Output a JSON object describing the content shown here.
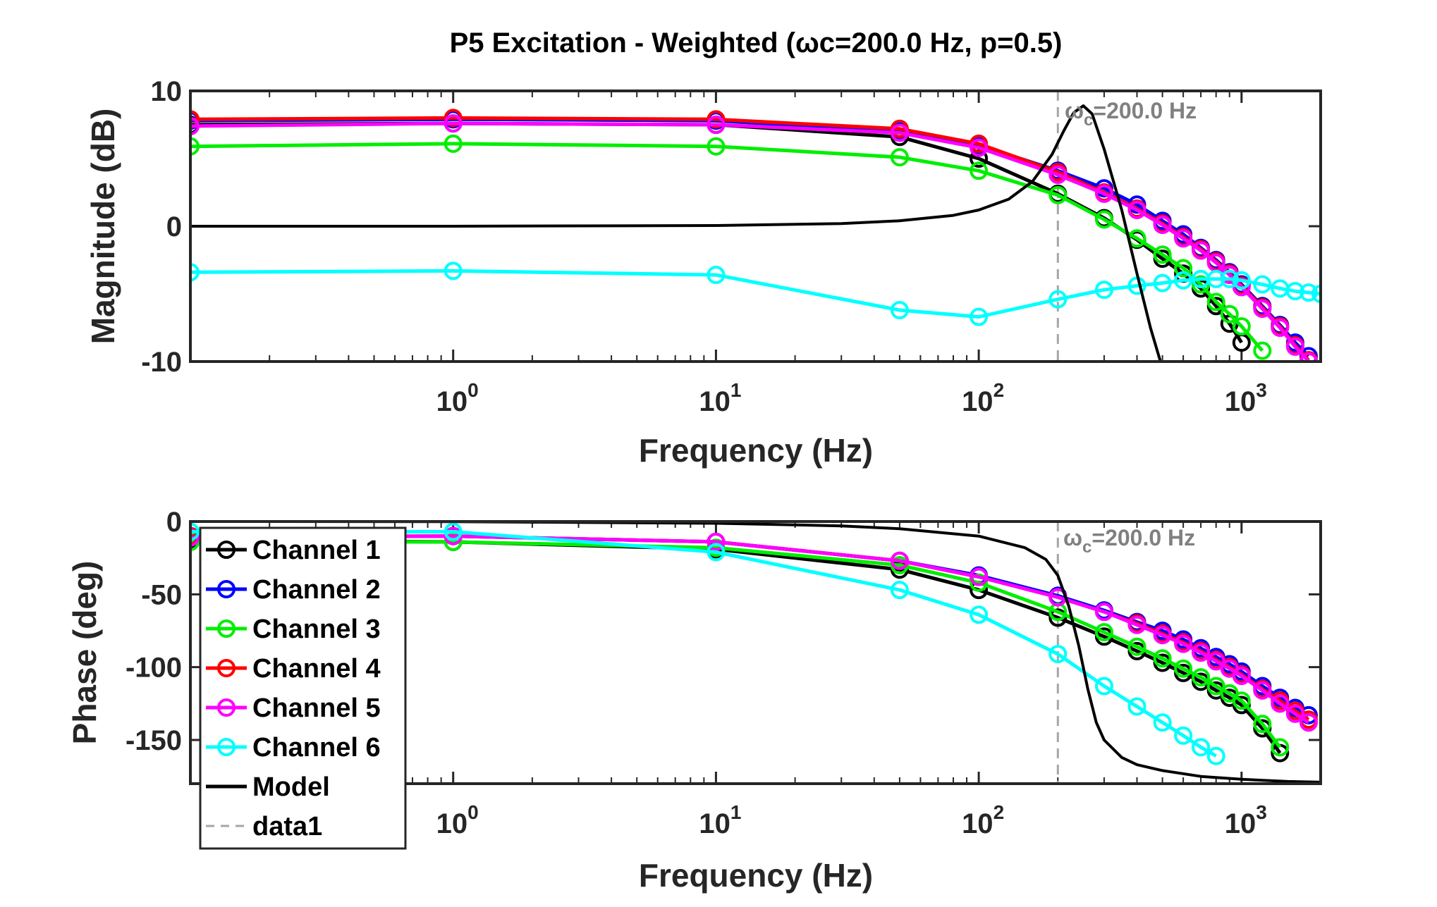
{
  "title": "P5 Excitation - Weighted (ωc=200.0 Hz, p=0.5)",
  "chart_data": [
    {
      "type": "line",
      "panel": "magnitude",
      "xscale": "log",
      "xlim": [
        0.1,
        2000
      ],
      "ylim": [
        -10,
        10
      ],
      "xlabel": "Frequency (Hz)",
      "ylabel": "Magnitude (dB)",
      "xticks": [
        {
          "value": 1,
          "base": "10",
          "exp": "0"
        },
        {
          "value": 10,
          "base": "10",
          "exp": "1"
        },
        {
          "value": 100,
          "base": "10",
          "exp": "2"
        },
        {
          "value": 1000,
          "base": "10",
          "exp": "3"
        }
      ],
      "yticks": [
        {
          "value": -10,
          "label": "-10"
        },
        {
          "value": 0,
          "label": "0"
        },
        {
          "value": 10,
          "label": "10"
        }
      ],
      "grid": false,
      "annotation": {
        "x": 200,
        "base": "ω",
        "sub": "c",
        "rest": "=200.0 Hz"
      },
      "model": {
        "name": "Model",
        "color": "#000000",
        "x": [
          0.1,
          1,
          10,
          30,
          50,
          80,
          100,
          130,
          160,
          190,
          210,
          230,
          250,
          270,
          300,
          350,
          400,
          450,
          500,
          520
        ],
        "y": [
          0,
          0,
          0.05,
          0.2,
          0.4,
          0.8,
          1.2,
          2.0,
          3.3,
          5.3,
          7.0,
          8.4,
          8.9,
          8.3,
          5.7,
          1.2,
          -3.5,
          -7.5,
          -10.5,
          -11.3
        ]
      },
      "series": [
        {
          "name": "Channel 1",
          "color": "#000000",
          "x": [
            0.1,
            1,
            10,
            50,
            100,
            200,
            300,
            400,
            500,
            600,
            700,
            800,
            900,
            1000
          ],
          "y": [
            7.5,
            7.6,
            7.5,
            6.6,
            5.0,
            2.4,
            0.6,
            -1.0,
            -2.4,
            -3.5,
            -4.6,
            -5.9,
            -7.2,
            -8.6
          ]
        },
        {
          "name": "Channel 2",
          "color": "#0000ff",
          "x": [
            0.1,
            1,
            10,
            50,
            100,
            200,
            300,
            400,
            500,
            600,
            700,
            800,
            900,
            1000,
            1200,
            1400,
            1600,
            1800
          ],
          "y": [
            7.8,
            7.9,
            7.8,
            7.0,
            6.0,
            4.1,
            2.8,
            1.6,
            0.4,
            -0.6,
            -1.6,
            -2.5,
            -3.4,
            -4.3,
            -5.9,
            -7.3,
            -8.6,
            -9.6
          ]
        },
        {
          "name": "Channel 3",
          "color": "#00ee00",
          "x": [
            0.1,
            1,
            10,
            50,
            100,
            200,
            300,
            400,
            500,
            600,
            700,
            800,
            900,
            1000,
            1200
          ],
          "y": [
            5.9,
            6.1,
            5.9,
            5.1,
            4.1,
            2.3,
            0.5,
            -0.9,
            -2.1,
            -3.1,
            -4.3,
            -5.6,
            -6.5,
            -7.4,
            -9.2
          ]
        },
        {
          "name": "Channel 4",
          "color": "#ff0000",
          "x": [
            0.1,
            1,
            10,
            50,
            100,
            200,
            300,
            400,
            500,
            600,
            700,
            800,
            900,
            1000,
            1200,
            1400,
            1600,
            1800
          ],
          "y": [
            7.9,
            8.0,
            7.9,
            7.2,
            6.1,
            4.0,
            2.5,
            1.3,
            0.2,
            -0.8,
            -1.7,
            -2.6,
            -3.5,
            -4.4,
            -6.0,
            -7.4,
            -8.8,
            -9.9
          ]
        },
        {
          "name": "Channel 5",
          "color": "#ff00ff",
          "x": [
            0.1,
            1,
            10,
            50,
            100,
            200,
            300,
            400,
            500,
            600,
            700,
            800,
            900,
            1000,
            1200,
            1400,
            1600,
            1800
          ],
          "y": [
            7.4,
            7.6,
            7.5,
            6.9,
            5.8,
            3.8,
            2.4,
            1.2,
            0.1,
            -0.9,
            -1.8,
            -2.7,
            -3.6,
            -4.5,
            -6.1,
            -7.5,
            -8.9,
            -10.0
          ]
        },
        {
          "name": "Channel 6",
          "color": "#00ffff",
          "x": [
            0.1,
            1,
            10,
            50,
            100,
            200,
            300,
            400,
            500,
            600,
            700,
            800,
            900,
            1000,
            1200,
            1400,
            1600,
            1800,
            2000
          ],
          "y": [
            -3.4,
            -3.3,
            -3.6,
            -6.2,
            -6.7,
            -5.4,
            -4.7,
            -4.4,
            -4.2,
            -4.0,
            -3.9,
            -3.9,
            -3.9,
            -4.0,
            -4.3,
            -4.6,
            -4.8,
            -4.9,
            -5.0
          ]
        }
      ]
    },
    {
      "type": "line",
      "panel": "phase",
      "xscale": "log",
      "xlim": [
        0.1,
        2000
      ],
      "ylim": [
        -180,
        0
      ],
      "xlabel": "Frequency (Hz)",
      "ylabel": "Phase (deg)",
      "xticks": [
        {
          "value": 1,
          "base": "10",
          "exp": "0"
        },
        {
          "value": 10,
          "base": "10",
          "exp": "1"
        },
        {
          "value": 100,
          "base": "10",
          "exp": "2"
        },
        {
          "value": 1000,
          "base": "10",
          "exp": "3"
        }
      ],
      "yticks": [
        {
          "value": -150,
          "label": "-150"
        },
        {
          "value": -100,
          "label": "-100"
        },
        {
          "value": -50,
          "label": "-50"
        },
        {
          "value": 0,
          "label": "0"
        }
      ],
      "grid": false,
      "legend": "top-left",
      "annotation": {
        "x": 200,
        "base": "ω",
        "sub": "c",
        "rest": "=200.0 Hz"
      },
      "reference_line": {
        "name": "data1",
        "x": 200,
        "style": "dashed",
        "color": "#a6a6a6"
      },
      "model": {
        "name": "Model",
        "color": "#000000",
        "x": [
          0.1,
          1,
          10,
          30,
          50,
          100,
          150,
          180,
          200,
          220,
          240,
          260,
          280,
          300,
          350,
          400,
          500,
          700,
          1000,
          1500,
          2000
        ],
        "y": [
          0,
          -0.1,
          -1.2,
          -3,
          -5,
          -10,
          -18,
          -26,
          -37,
          -58,
          -85,
          -115,
          -138,
          -150,
          -162,
          -167,
          -171,
          -175,
          -177,
          -178.5,
          -179
        ]
      },
      "series": [
        {
          "name": "Channel 1",
          "color": "#000000",
          "x": [
            0.1,
            1,
            10,
            50,
            100,
            200,
            300,
            400,
            500,
            600,
            700,
            800,
            900,
            1000,
            1200,
            1400
          ],
          "y": [
            -13,
            -14,
            -19,
            -33,
            -47,
            -66,
            -79,
            -89,
            -97,
            -104,
            -110,
            -116,
            -121,
            -126,
            -142,
            -159
          ]
        },
        {
          "name": "Channel 2",
          "color": "#0000ff",
          "x": [
            0.1,
            1,
            10,
            50,
            100,
            200,
            300,
            400,
            500,
            600,
            700,
            800,
            900,
            1000,
            1200,
            1400,
            1600,
            1800
          ],
          "y": [
            -11,
            -10,
            -14,
            -27,
            -37,
            -51,
            -61,
            -69,
            -75,
            -81,
            -87,
            -93,
            -98,
            -103,
            -113,
            -121,
            -128,
            -133
          ]
        },
        {
          "name": "Channel 3",
          "color": "#00ee00",
          "x": [
            0.1,
            1,
            10,
            50,
            100,
            200,
            300,
            400,
            500,
            600,
            700,
            800,
            900,
            1000,
            1200,
            1400
          ],
          "y": [
            -14,
            -14,
            -18,
            -30,
            -42,
            -62,
            -76,
            -86,
            -94,
            -101,
            -107,
            -113,
            -118,
            -123,
            -139,
            -155
          ]
        },
        {
          "name": "Channel 4",
          "color": "#ff0000",
          "x": [
            0.1,
            1,
            10,
            50,
            100,
            200,
            300,
            400,
            500,
            600,
            700,
            800,
            900,
            1000,
            1200,
            1400,
            1600,
            1800
          ],
          "y": [
            -10,
            -10,
            -14,
            -27,
            -38,
            -52,
            -62,
            -70,
            -77,
            -83,
            -89,
            -95,
            -100,
            -105,
            -115,
            -123,
            -130,
            -136
          ]
        },
        {
          "name": "Channel 5",
          "color": "#ff00ff",
          "x": [
            0.1,
            1,
            10,
            50,
            100,
            200,
            300,
            400,
            500,
            600,
            700,
            800,
            900,
            1000,
            1200,
            1400,
            1600,
            1800
          ],
          "y": [
            -11,
            -10,
            -14,
            -27,
            -38,
            -52,
            -62,
            -71,
            -78,
            -84,
            -90,
            -96,
            -101,
            -106,
            -116,
            -125,
            -132,
            -138
          ]
        },
        {
          "name": "Channel 6",
          "color": "#00ffff",
          "x": [
            0.1,
            1,
            10,
            50,
            100,
            200,
            300,
            400,
            500,
            600,
            700,
            800
          ],
          "y": [
            -7,
            -7,
            -21,
            -47,
            -64,
            -91,
            -113,
            -127,
            -138,
            -147,
            -155,
            -161
          ]
        }
      ]
    }
  ]
}
